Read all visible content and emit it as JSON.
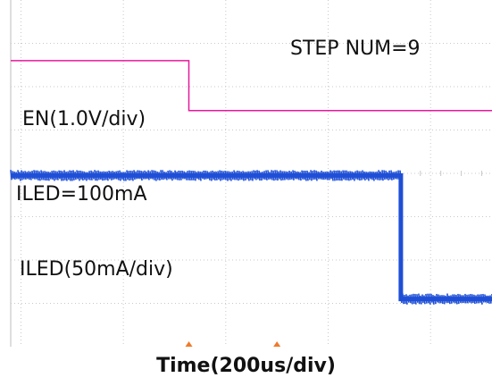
{
  "chart_data": {
    "type": "line",
    "title": "",
    "xlabel": "Time(200us/div)",
    "ylabel": "",
    "grid": true,
    "x_unit": "div",
    "xlim": [
      -0.1,
      4.6
    ],
    "ylim": [
      0,
      8
    ],
    "series": [
      {
        "name": "EN(1.0V/div)",
        "color": "#e8179a",
        "points": [
          [
            -0.1,
            6.6
          ],
          [
            1.64,
            6.6
          ],
          [
            1.64,
            5.45
          ],
          [
            4.6,
            5.45
          ]
        ]
      },
      {
        "name": "ILED(50mA/div)",
        "color": "#1f4fd6",
        "noisy": true,
        "points": [
          [
            -0.1,
            3.95
          ],
          [
            3.71,
            3.95
          ],
          [
            3.71,
            1.1
          ],
          [
            4.6,
            1.1
          ]
        ]
      }
    ],
    "annotations": [
      {
        "text": "STEP NUM=9"
      },
      {
        "text": "EN(1.0V/div)"
      },
      {
        "text": "ILED=100mA"
      },
      {
        "text": "ILED(50mA/div)"
      }
    ],
    "trigger_marker_color": "#f07a2a",
    "grid_color": "#c9c9c9"
  }
}
